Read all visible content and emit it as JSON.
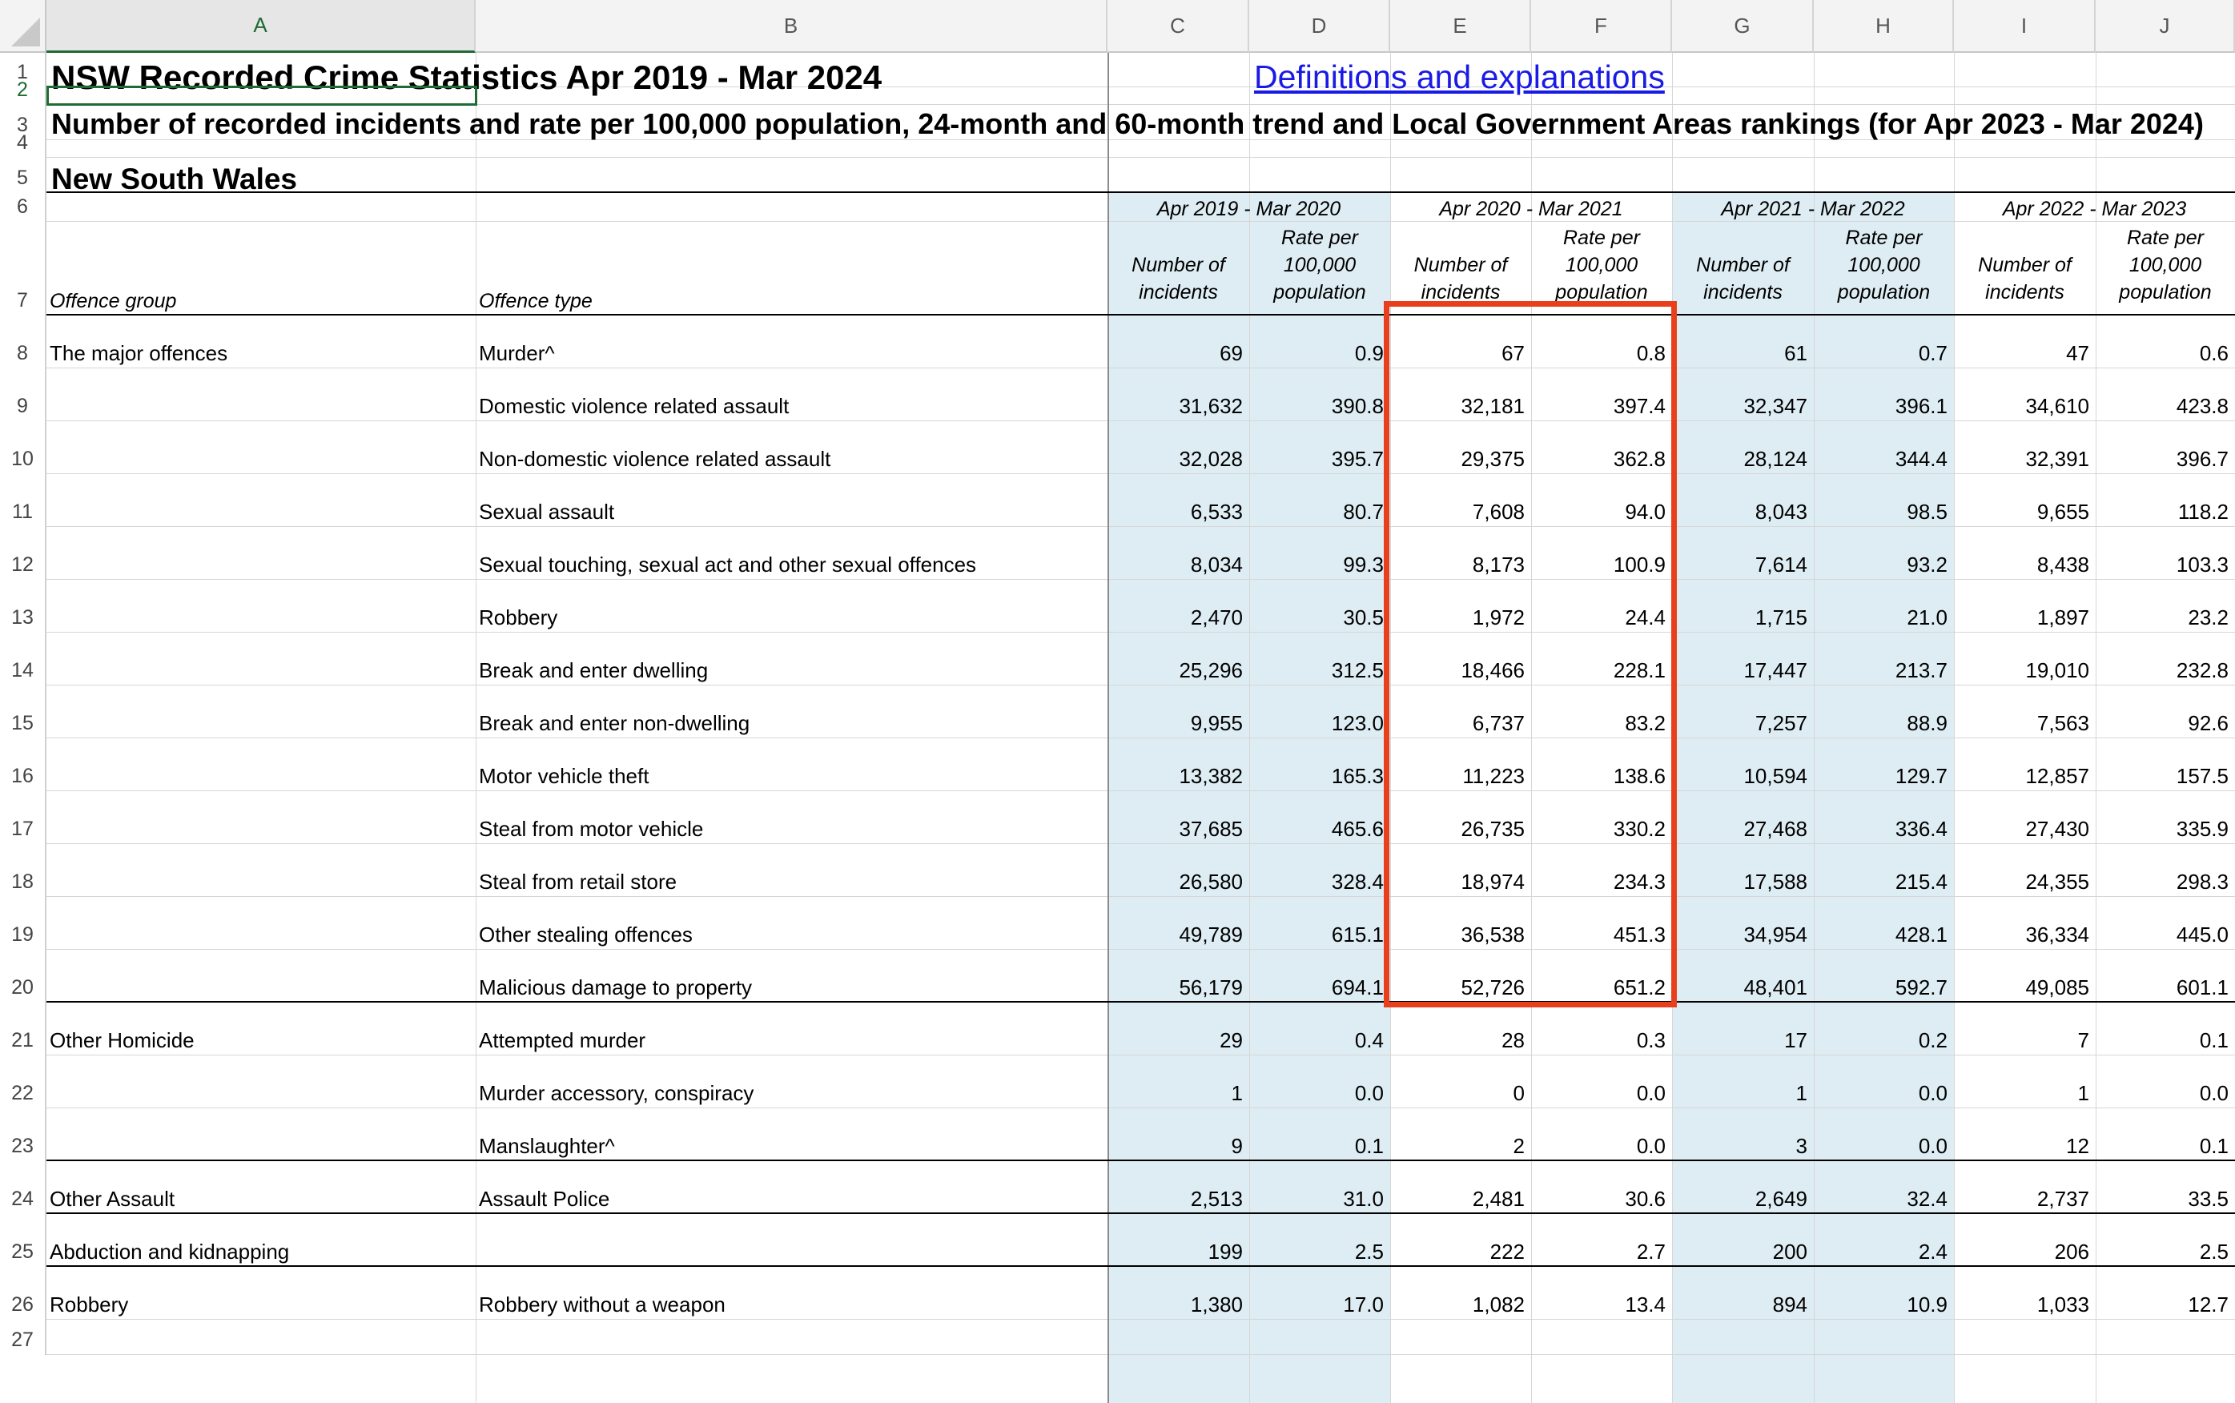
{
  "columns": [
    "A",
    "B",
    "C",
    "D",
    "E",
    "F",
    "G",
    "H",
    "I",
    "J"
  ],
  "row_numbers": [
    "1",
    "2",
    "3",
    "4",
    "5",
    "6",
    "7",
    "8",
    "9",
    "10",
    "11",
    "12",
    "13",
    "14",
    "15",
    "16",
    "17",
    "18",
    "19",
    "20",
    "21",
    "22",
    "23",
    "24",
    "25",
    "26",
    "27"
  ],
  "selected_cell": "A2",
  "title": "NSW Recorded Crime Statistics Apr 2019 - Mar 2024",
  "link": "Definitions and explanations",
  "subtitle": "Number of recorded incidents and rate per 100,000 population, 24-month and 60-month trend and Local Government Areas rankings (for Apr 2023 - Mar 2024)",
  "region": "New South Wales",
  "headers": {
    "offence_group": "Offence group",
    "offence_type": "Offence type",
    "periods": [
      "Apr 2019 - Mar 2020",
      "Apr 2020 - Mar 2021",
      "Apr 2021 - Mar 2022",
      "Apr 2022 - Mar 2023"
    ],
    "incidents": "Number of incidents",
    "rate": "Rate per 100,000 population"
  },
  "colors": {
    "band": "#deedf3",
    "highlight": "#e8401c",
    "link": "#1a1ae6",
    "selection": "#1e6b35"
  },
  "rows": [
    {
      "group": "The major offences",
      "type": "Murder^",
      "c": "69",
      "d": "0.9",
      "e": "67",
      "f": "0.8",
      "g": "61",
      "h": "0.7",
      "i": "47",
      "j": "0.6"
    },
    {
      "group": "",
      "type": "Domestic violence related assault",
      "c": "31,632",
      "d": "390.8",
      "e": "32,181",
      "f": "397.4",
      "g": "32,347",
      "h": "396.1",
      "i": "34,610",
      "j": "423.8"
    },
    {
      "group": "",
      "type": "Non-domestic violence related assault",
      "c": "32,028",
      "d": "395.7",
      "e": "29,375",
      "f": "362.8",
      "g": "28,124",
      "h": "344.4",
      "i": "32,391",
      "j": "396.7"
    },
    {
      "group": "",
      "type": "Sexual assault",
      "c": "6,533",
      "d": "80.7",
      "e": "7,608",
      "f": "94.0",
      "g": "8,043",
      "h": "98.5",
      "i": "9,655",
      "j": "118.2"
    },
    {
      "group": "",
      "type": "Sexual touching, sexual act and other sexual offences",
      "c": "8,034",
      "d": "99.3",
      "e": "8,173",
      "f": "100.9",
      "g": "7,614",
      "h": "93.2",
      "i": "8,438",
      "j": "103.3"
    },
    {
      "group": "",
      "type": "Robbery",
      "c": "2,470",
      "d": "30.5",
      "e": "1,972",
      "f": "24.4",
      "g": "1,715",
      "h": "21.0",
      "i": "1,897",
      "j": "23.2"
    },
    {
      "group": "",
      "type": "Break and enter dwelling",
      "c": "25,296",
      "d": "312.5",
      "e": "18,466",
      "f": "228.1",
      "g": "17,447",
      "h": "213.7",
      "i": "19,010",
      "j": "232.8"
    },
    {
      "group": "",
      "type": "Break and enter non-dwelling",
      "c": "9,955",
      "d": "123.0",
      "e": "6,737",
      "f": "83.2",
      "g": "7,257",
      "h": "88.9",
      "i": "7,563",
      "j": "92.6"
    },
    {
      "group": "",
      "type": "Motor vehicle theft",
      "c": "13,382",
      "d": "165.3",
      "e": "11,223",
      "f": "138.6",
      "g": "10,594",
      "h": "129.7",
      "i": "12,857",
      "j": "157.5"
    },
    {
      "group": "",
      "type": "Steal from motor vehicle",
      "c": "37,685",
      "d": "465.6",
      "e": "26,735",
      "f": "330.2",
      "g": "27,468",
      "h": "336.4",
      "i": "27,430",
      "j": "335.9"
    },
    {
      "group": "",
      "type": "Steal from retail store",
      "c": "26,580",
      "d": "328.4",
      "e": "18,974",
      "f": "234.3",
      "g": "17,588",
      "h": "215.4",
      "i": "24,355",
      "j": "298.3"
    },
    {
      "group": "",
      "type": "Other stealing offences",
      "c": "49,789",
      "d": "615.1",
      "e": "36,538",
      "f": "451.3",
      "g": "34,954",
      "h": "428.1",
      "i": "36,334",
      "j": "445.0"
    },
    {
      "group": "",
      "type": "Malicious damage to property",
      "c": "56,179",
      "d": "694.1",
      "e": "52,726",
      "f": "651.2",
      "g": "48,401",
      "h": "592.7",
      "i": "49,085",
      "j": "601.1"
    },
    {
      "group": "Other Homicide",
      "type": "Attempted murder",
      "c": "29",
      "d": "0.4",
      "e": "28",
      "f": "0.3",
      "g": "17",
      "h": "0.2",
      "i": "7",
      "j": "0.1"
    },
    {
      "group": "",
      "type": "Murder accessory, conspiracy",
      "c": "1",
      "d": "0.0",
      "e": "0",
      "f": "0.0",
      "g": "1",
      "h": "0.0",
      "i": "1",
      "j": "0.0"
    },
    {
      "group": "",
      "type": "Manslaughter^",
      "c": "9",
      "d": "0.1",
      "e": "2",
      "f": "0.0",
      "g": "3",
      "h": "0.0",
      "i": "12",
      "j": "0.1"
    },
    {
      "group": "Other Assault",
      "type": "Assault Police",
      "c": "2,513",
      "d": "31.0",
      "e": "2,481",
      "f": "30.6",
      "g": "2,649",
      "h": "32.4",
      "i": "2,737",
      "j": "33.5"
    },
    {
      "group": "Abduction and kidnapping",
      "type": "",
      "c": "199",
      "d": "2.5",
      "e": "222",
      "f": "2.7",
      "g": "200",
      "h": "2.4",
      "i": "206",
      "j": "2.5"
    },
    {
      "group": "Robbery",
      "type": "Robbery without a weapon",
      "c": "1,380",
      "d": "17.0",
      "e": "1,082",
      "f": "13.4",
      "g": "894",
      "h": "10.9",
      "i": "1,033",
      "j": "12.7"
    }
  ]
}
